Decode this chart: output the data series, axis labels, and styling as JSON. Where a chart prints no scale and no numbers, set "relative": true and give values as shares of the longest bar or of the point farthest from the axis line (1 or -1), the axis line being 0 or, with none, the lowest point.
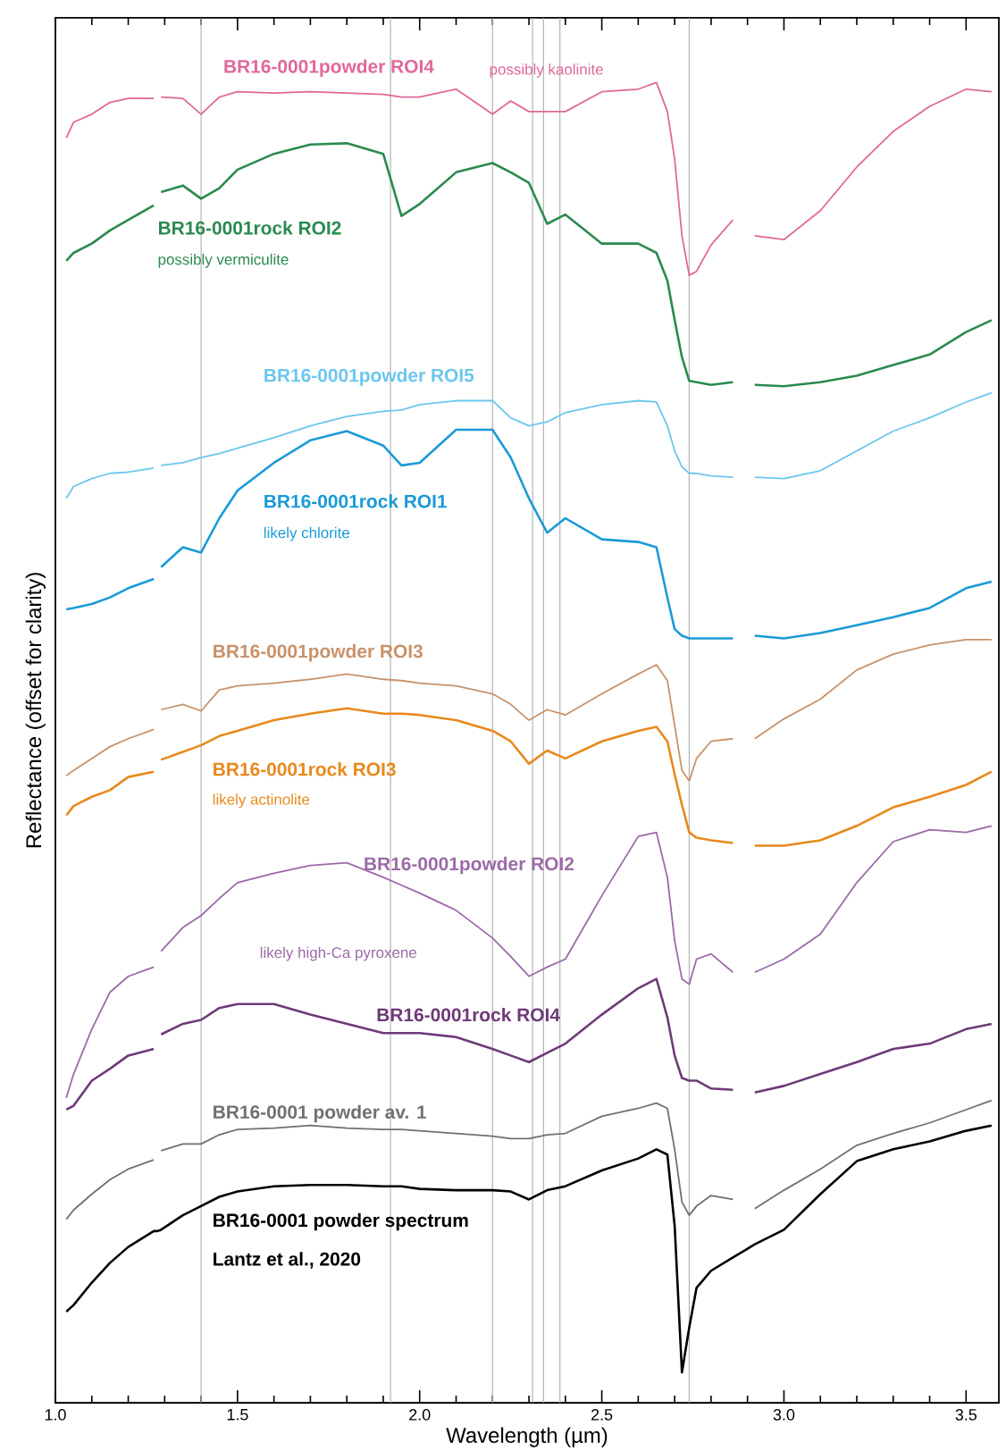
{
  "chart_data": {
    "type": "line",
    "relative": true,
    "xlabel": "Wavelength (µm)",
    "ylabel": "Reflectance (offset for clarity)",
    "xlim": [
      1.0,
      3.59
    ],
    "xticks": [
      {
        "value": 1.0,
        "label": "1.0"
      },
      {
        "value": 1.5,
        "label": "1.5"
      },
      {
        "value": 2.0,
        "label": "2.0"
      },
      {
        "value": 2.5,
        "label": "2.5"
      },
      {
        "value": 3.0,
        "label": "3.0"
      },
      {
        "value": 3.5,
        "label": "3.5"
      }
    ],
    "x": [
      1.03,
      1.05,
      1.1,
      1.15,
      1.2,
      1.27,
      1.28,
      1.29,
      1.35,
      1.4,
      1.45,
      1.5,
      1.6,
      1.7,
      1.8,
      1.9,
      1.95,
      2.0,
      2.1,
      2.2,
      2.25,
      2.3,
      2.35,
      2.4,
      2.5,
      2.6,
      2.65,
      2.68,
      2.7,
      2.72,
      2.74,
      2.76,
      2.8,
      2.86,
      2.89,
      2.92,
      3.0,
      3.1,
      3.2,
      3.3,
      3.4,
      3.5,
      3.57
    ],
    "series": [
      {
        "name": "BR16-0001powder ROI4",
        "color": "#e0679a",
        "values": [
          0.958,
          0.97,
          0.976,
          0.985,
          0.988,
          0.988,
          null,
          0.989,
          0.988,
          0.976,
          0.989,
          0.993,
          0.992,
          0.993,
          0.992,
          0.991,
          0.989,
          0.989,
          0.995,
          0.976,
          0.986,
          0.978,
          0.978,
          0.978,
          0.993,
          0.995,
          1.0,
          0.978,
          0.942,
          0.884,
          0.854,
          0.857,
          0.877,
          0.896,
          null,
          0.884,
          0.881,
          0.903,
          0.936,
          0.963,
          0.982,
          0.995,
          0.993
        ]
      },
      {
        "name": "BR16-0001rock ROI2",
        "color": "#2a8a4f",
        "values": [
          0.865,
          0.871,
          0.878,
          0.888,
          0.896,
          0.907,
          null,
          0.917,
          0.922,
          0.912,
          0.92,
          0.934,
          0.946,
          0.953,
          0.954,
          0.946,
          0.899,
          0.908,
          0.932,
          0.939,
          0.932,
          0.924,
          0.893,
          0.9,
          0.878,
          0.878,
          0.871,
          0.85,
          0.82,
          0.792,
          0.774,
          0.773,
          0.771,
          0.773,
          null,
          0.771,
          0.77,
          0.773,
          0.778,
          0.786,
          0.794,
          0.811,
          0.82
        ]
      },
      {
        "name": "BR16-0001powder ROI5",
        "color": "#6cc6ee",
        "values": [
          0.685,
          0.694,
          0.7,
          0.704,
          0.705,
          0.708,
          null,
          0.71,
          0.712,
          0.716,
          0.719,
          0.723,
          0.731,
          0.74,
          0.747,
          0.751,
          0.752,
          0.756,
          0.759,
          0.759,
          0.746,
          0.74,
          0.743,
          0.75,
          0.756,
          0.759,
          0.758,
          0.74,
          0.721,
          0.709,
          0.704,
          0.704,
          0.702,
          0.701,
          null,
          0.701,
          0.7,
          0.706,
          0.721,
          0.736,
          0.746,
          0.758,
          0.765
        ]
      },
      {
        "name": "BR16-0001rock ROI1",
        "color": "#1a9ad6",
        "values": [
          0.601,
          0.602,
          0.605,
          0.61,
          0.617,
          0.624,
          null,
          0.633,
          0.648,
          0.644,
          0.67,
          0.691,
          0.712,
          0.729,
          0.736,
          0.725,
          0.71,
          0.712,
          0.737,
          0.737,
          0.716,
          0.685,
          0.659,
          0.67,
          0.654,
          0.652,
          0.648,
          0.61,
          0.586,
          0.581,
          0.579,
          0.579,
          0.579,
          0.579,
          null,
          0.581,
          0.579,
          0.583,
          0.589,
          0.595,
          0.602,
          0.617,
          0.622
        ]
      },
      {
        "name": "BR16-0001powder ROI3",
        "color": "#c8926a",
        "values": [
          0.475,
          0.479,
          0.488,
          0.497,
          0.503,
          0.51,
          null,
          0.525,
          0.529,
          0.524,
          0.54,
          0.543,
          0.545,
          0.548,
          0.552,
          0.548,
          0.547,
          0.545,
          0.543,
          0.537,
          0.529,
          0.517,
          0.525,
          0.521,
          0.537,
          0.552,
          0.559,
          0.547,
          0.513,
          0.479,
          0.471,
          0.488,
          0.501,
          0.503,
          null,
          0.503,
          0.518,
          0.533,
          0.555,
          0.567,
          0.574,
          0.578,
          0.578
        ]
      },
      {
        "name": "BR16-0001rock ROI3",
        "color": "#e8891c",
        "values": [
          0.445,
          0.452,
          0.459,
          0.464,
          0.474,
          0.478,
          null,
          0.487,
          0.493,
          0.498,
          0.505,
          0.509,
          0.517,
          0.522,
          0.526,
          0.522,
          0.522,
          0.521,
          0.517,
          0.509,
          0.501,
          0.484,
          0.494,
          0.488,
          0.501,
          0.509,
          0.512,
          0.501,
          0.476,
          0.453,
          0.432,
          0.428,
          0.426,
          0.424,
          null,
          0.422,
          0.422,
          0.426,
          0.437,
          0.451,
          0.459,
          0.468,
          0.478
        ]
      },
      {
        "name": "BR16-0001powder ROI2",
        "color": "#9b6aa8",
        "values": [
          0.231,
          0.249,
          0.283,
          0.311,
          0.323,
          0.33,
          null,
          0.342,
          0.36,
          0.369,
          0.382,
          0.394,
          0.401,
          0.407,
          0.409,
          0.398,
          0.392,
          0.386,
          0.373,
          0.352,
          0.338,
          0.323,
          0.33,
          0.336,
          0.384,
          0.429,
          0.432,
          0.398,
          0.35,
          0.321,
          0.317,
          0.336,
          0.34,
          0.326,
          null,
          0.326,
          0.336,
          0.355,
          0.394,
          0.425,
          0.434,
          0.432,
          0.437
        ]
      },
      {
        "name": "BR16-0001rock ROI4",
        "color": "#6e3a78",
        "values": [
          0.222,
          0.225,
          0.244,
          0.253,
          0.263,
          0.268,
          null,
          0.279,
          0.287,
          0.29,
          0.299,
          0.302,
          0.302,
          0.294,
          0.287,
          0.28,
          0.28,
          0.28,
          0.277,
          0.268,
          0.263,
          0.258,
          0.265,
          0.272,
          0.294,
          0.314,
          0.321,
          0.292,
          0.263,
          0.246,
          0.244,
          0.244,
          0.238,
          0.237,
          null,
          0.235,
          0.24,
          0.249,
          0.258,
          0.268,
          0.272,
          0.283,
          0.287
        ]
      },
      {
        "name": "BR16-0001 powder av. 1",
        "color": "#707070",
        "values": [
          0.139,
          0.146,
          0.158,
          0.169,
          0.177,
          0.184,
          null,
          0.191,
          0.196,
          0.196,
          0.203,
          0.207,
          0.208,
          0.21,
          0.208,
          0.207,
          0.207,
          0.206,
          0.204,
          0.202,
          0.2,
          0.2,
          0.203,
          0.204,
          0.217,
          0.223,
          0.227,
          0.223,
          0.192,
          0.152,
          0.142,
          0.149,
          0.157,
          0.154,
          null,
          0.147,
          0.161,
          0.177,
          0.195,
          0.204,
          0.212,
          0.222,
          0.229
        ]
      },
      {
        "name": "BR16-0001 powder spectrum",
        "color": "#000000",
        "values": [
          0.069,
          0.074,
          0.091,
          0.106,
          0.118,
          0.13,
          0.13,
          0.131,
          0.142,
          0.149,
          0.156,
          0.16,
          0.164,
          0.165,
          0.165,
          0.164,
          0.164,
          0.162,
          0.161,
          0.161,
          0.16,
          0.154,
          0.161,
          0.164,
          0.176,
          0.185,
          0.192,
          0.188,
          0.134,
          0.023,
          0.057,
          0.087,
          0.1,
          0.11,
          0.115,
          0.12,
          0.131,
          0.158,
          0.183,
          0.192,
          0.198,
          0.206,
          0.21
        ]
      }
    ],
    "annotations": [
      "possibly kaolinite",
      "possibly vermiculite",
      "likely chlorite",
      "likely actinolite",
      "likely high-Ca pyroxene",
      "Lantz et al., 2020"
    ],
    "ref_lines": [
      {
        "axis": "x",
        "value": 1.4,
        "color": "#b4b4b4"
      },
      {
        "axis": "x",
        "value": 1.92,
        "color": "#b4b4b4"
      },
      {
        "axis": "x",
        "value": 2.2,
        "color": "#b4b4b4"
      },
      {
        "axis": "x",
        "value": 2.31,
        "color": "#b4b4b4"
      },
      {
        "axis": "x",
        "value": 2.34,
        "color": "#b4b4b4"
      },
      {
        "axis": "x",
        "value": 2.385,
        "color": "#b4b4b4"
      },
      {
        "axis": "x",
        "value": 2.74,
        "color": "#b4b4b4"
      }
    ],
    "legend": false,
    "grid": false,
    "marker": "none",
    "line_style": "solid"
  }
}
